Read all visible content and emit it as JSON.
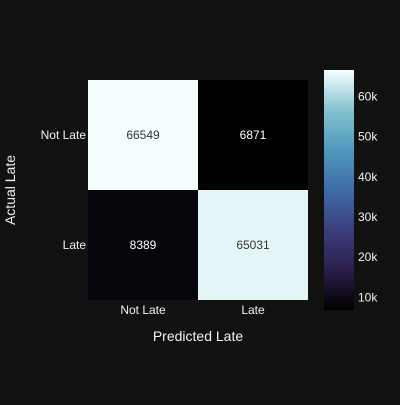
{
  "chart_data": {
    "type": "heatmap",
    "title": "",
    "xlabel": "Predicted Late",
    "ylabel": "Actual Late",
    "x_categories": [
      "Not Late",
      "Late"
    ],
    "y_categories": [
      "Not Late",
      "Late"
    ],
    "values": [
      [
        66549,
        6871
      ],
      [
        8389,
        65031
      ]
    ],
    "colorbar": {
      "ticks": [
        10000,
        20000,
        30000,
        40000,
        50000,
        60000
      ],
      "tick_labels": [
        "10k",
        "20k",
        "30k",
        "40k",
        "50k",
        "60k"
      ],
      "min": 6871,
      "max": 66549
    },
    "colorscale": [
      "#000000",
      "#2b1e4a",
      "#3b3f7d",
      "#3f6ba6",
      "#4f99bd",
      "#84c3cf",
      "#f5fefe"
    ],
    "background": "#111111"
  }
}
